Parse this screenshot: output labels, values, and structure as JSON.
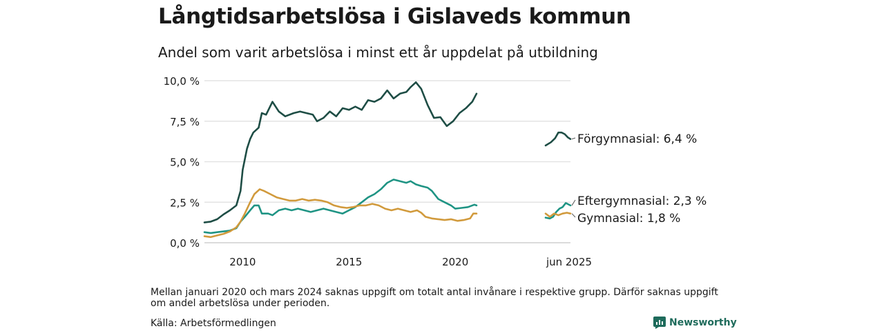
{
  "header": {
    "title": "Långtidsarbetslösa i Gislaveds kommun",
    "subtitle": "Andel som varit arbetslösa i minst ett år uppdelat på utbildning"
  },
  "footer": {
    "note": "Mellan januari 2020 och mars 2024 saknas uppgift om totalt antal invånare i respektive grupp. Därför saknas uppgift om andel arbetslösa under perioden.",
    "source": "Källa: Arbetsförmedlingen",
    "brand": "Newsworthy",
    "brand_icon": "newsworthy-logo-icon"
  },
  "chart_data": {
    "type": "line",
    "ylim": [
      0,
      10
    ],
    "y_ticks": [
      0,
      2.5,
      5,
      7.5,
      10
    ],
    "y_tick_labels": [
      "0,0 %",
      "2,5 %",
      "5,0 %",
      "7,5 %",
      "10,0 %"
    ],
    "x_ticks": [
      {
        "x": 2010,
        "label": "2010"
      },
      {
        "x": 2015,
        "label": "2015"
      },
      {
        "x": 2020,
        "label": "2020"
      },
      {
        "x": 2025.42,
        "label": "jun 2025"
      }
    ],
    "grid": "horizontal",
    "series": [
      {
        "name": "Förgymnasial",
        "end_label": "Förgymnasial: 6,4 %",
        "color": "#1e4d45",
        "segments": [
          [
            [
              2008.2,
              1.25
            ],
            [
              2008.5,
              1.3
            ],
            [
              2008.8,
              1.45
            ],
            [
              2009.1,
              1.75
            ],
            [
              2009.4,
              2.0
            ],
            [
              2009.7,
              2.3
            ],
            [
              2009.9,
              3.2
            ],
            [
              2010.0,
              4.5
            ],
            [
              2010.2,
              5.8
            ],
            [
              2010.35,
              6.4
            ],
            [
              2010.5,
              6.8
            ],
            [
              2010.75,
              7.1
            ],
            [
              2010.9,
              8.0
            ],
            [
              2011.1,
              7.9
            ],
            [
              2011.4,
              8.7
            ],
            [
              2011.7,
              8.1
            ],
            [
              2012.0,
              7.8
            ],
            [
              2012.4,
              8.0
            ],
            [
              2012.7,
              8.1
            ],
            [
              2013.0,
              8.0
            ],
            [
              2013.3,
              7.9
            ],
            [
              2013.5,
              7.5
            ],
            [
              2013.8,
              7.7
            ],
            [
              2014.1,
              8.1
            ],
            [
              2014.4,
              7.8
            ],
            [
              2014.7,
              8.3
            ],
            [
              2015.0,
              8.2
            ],
            [
              2015.3,
              8.4
            ],
            [
              2015.6,
              8.2
            ],
            [
              2015.9,
              8.8
            ],
            [
              2016.2,
              8.7
            ],
            [
              2016.5,
              8.9
            ],
            [
              2016.8,
              9.4
            ],
            [
              2017.1,
              8.9
            ],
            [
              2017.4,
              9.2
            ],
            [
              2017.7,
              9.3
            ],
            [
              2017.9,
              9.6
            ],
            [
              2018.15,
              9.9
            ],
            [
              2018.4,
              9.5
            ],
            [
              2018.7,
              8.5
            ],
            [
              2019.0,
              7.7
            ],
            [
              2019.3,
              7.75
            ],
            [
              2019.6,
              7.2
            ],
            [
              2019.9,
              7.5
            ],
            [
              2020.2,
              8.0
            ],
            [
              2020.5,
              8.3
            ],
            [
              2020.8,
              8.7
            ],
            [
              2021.0,
              9.2
            ]
          ],
          [
            [
              2024.25,
              6.0
            ],
            [
              2024.5,
              6.2
            ],
            [
              2024.7,
              6.45
            ],
            [
              2024.85,
              6.8
            ],
            [
              2025.0,
              6.8
            ],
            [
              2025.15,
              6.7
            ],
            [
              2025.3,
              6.5
            ],
            [
              2025.42,
              6.4
            ]
          ]
        ]
      },
      {
        "name": "Eftergymnasial",
        "end_label": "Eftergymnasial: 2,3 %",
        "color": "#1f9484",
        "segments": [
          [
            [
              2008.2,
              0.65
            ],
            [
              2008.5,
              0.6
            ],
            [
              2008.8,
              0.65
            ],
            [
              2009.1,
              0.7
            ],
            [
              2009.4,
              0.75
            ],
            [
              2009.7,
              0.9
            ],
            [
              2009.9,
              1.3
            ],
            [
              2010.1,
              1.6
            ],
            [
              2010.35,
              2.0
            ],
            [
              2010.55,
              2.3
            ],
            [
              2010.75,
              2.3
            ],
            [
              2010.9,
              1.8
            ],
            [
              2011.2,
              1.8
            ],
            [
              2011.4,
              1.7
            ],
            [
              2011.7,
              2.0
            ],
            [
              2012.0,
              2.1
            ],
            [
              2012.3,
              2.0
            ],
            [
              2012.6,
              2.1
            ],
            [
              2012.9,
              2.0
            ],
            [
              2013.2,
              1.9
            ],
            [
              2013.5,
              2.0
            ],
            [
              2013.8,
              2.1
            ],
            [
              2014.1,
              2.0
            ],
            [
              2014.4,
              1.9
            ],
            [
              2014.7,
              1.8
            ],
            [
              2015.0,
              2.0
            ],
            [
              2015.3,
              2.2
            ],
            [
              2015.6,
              2.5
            ],
            [
              2015.9,
              2.8
            ],
            [
              2016.2,
              3.0
            ],
            [
              2016.5,
              3.3
            ],
            [
              2016.8,
              3.7
            ],
            [
              2017.1,
              3.9
            ],
            [
              2017.4,
              3.8
            ],
            [
              2017.7,
              3.7
            ],
            [
              2017.9,
              3.8
            ],
            [
              2018.15,
              3.6
            ],
            [
              2018.4,
              3.5
            ],
            [
              2018.7,
              3.4
            ],
            [
              2018.9,
              3.2
            ],
            [
              2019.2,
              2.7
            ],
            [
              2019.5,
              2.5
            ],
            [
              2019.8,
              2.3
            ],
            [
              2020.0,
              2.1
            ],
            [
              2020.3,
              2.15
            ],
            [
              2020.6,
              2.2
            ],
            [
              2020.9,
              2.35
            ],
            [
              2021.0,
              2.3
            ]
          ],
          [
            [
              2024.25,
              1.55
            ],
            [
              2024.45,
              1.5
            ],
            [
              2024.6,
              1.6
            ],
            [
              2024.75,
              1.9
            ],
            [
              2024.9,
              2.1
            ],
            [
              2025.05,
              2.2
            ],
            [
              2025.2,
              2.45
            ],
            [
              2025.42,
              2.3
            ]
          ]
        ]
      },
      {
        "name": "Gymnasial",
        "end_label": "Gymnasial: 1,8 %",
        "color": "#d19a3c",
        "segments": [
          [
            [
              2008.2,
              0.4
            ],
            [
              2008.5,
              0.35
            ],
            [
              2008.8,
              0.45
            ],
            [
              2009.1,
              0.55
            ],
            [
              2009.4,
              0.7
            ],
            [
              2009.7,
              0.95
            ],
            [
              2009.9,
              1.3
            ],
            [
              2010.1,
              1.8
            ],
            [
              2010.35,
              2.5
            ],
            [
              2010.55,
              3.0
            ],
            [
              2010.8,
              3.3
            ],
            [
              2011.0,
              3.2
            ],
            [
              2011.3,
              3.0
            ],
            [
              2011.6,
              2.8
            ],
            [
              2011.9,
              2.7
            ],
            [
              2012.2,
              2.6
            ],
            [
              2012.5,
              2.6
            ],
            [
              2012.8,
              2.7
            ],
            [
              2013.1,
              2.6
            ],
            [
              2013.4,
              2.65
            ],
            [
              2013.7,
              2.6
            ],
            [
              2014.0,
              2.5
            ],
            [
              2014.3,
              2.3
            ],
            [
              2014.6,
              2.2
            ],
            [
              2014.9,
              2.15
            ],
            [
              2015.2,
              2.2
            ],
            [
              2015.5,
              2.3
            ],
            [
              2015.8,
              2.3
            ],
            [
              2016.1,
              2.4
            ],
            [
              2016.4,
              2.3
            ],
            [
              2016.7,
              2.1
            ],
            [
              2017.0,
              2.0
            ],
            [
              2017.3,
              2.1
            ],
            [
              2017.6,
              2.0
            ],
            [
              2017.9,
              1.9
            ],
            [
              2018.2,
              2.0
            ],
            [
              2018.4,
              1.85
            ],
            [
              2018.6,
              1.6
            ],
            [
              2018.9,
              1.5
            ],
            [
              2019.2,
              1.45
            ],
            [
              2019.5,
              1.4
            ],
            [
              2019.8,
              1.45
            ],
            [
              2020.1,
              1.35
            ],
            [
              2020.4,
              1.4
            ],
            [
              2020.7,
              1.5
            ],
            [
              2020.85,
              1.8
            ],
            [
              2021.0,
              1.8
            ]
          ],
          [
            [
              2024.25,
              1.8
            ],
            [
              2024.45,
              1.6
            ],
            [
              2024.65,
              1.8
            ],
            [
              2024.85,
              1.7
            ],
            [
              2025.05,
              1.8
            ],
            [
              2025.25,
              1.85
            ],
            [
              2025.42,
              1.8
            ]
          ]
        ]
      }
    ]
  }
}
